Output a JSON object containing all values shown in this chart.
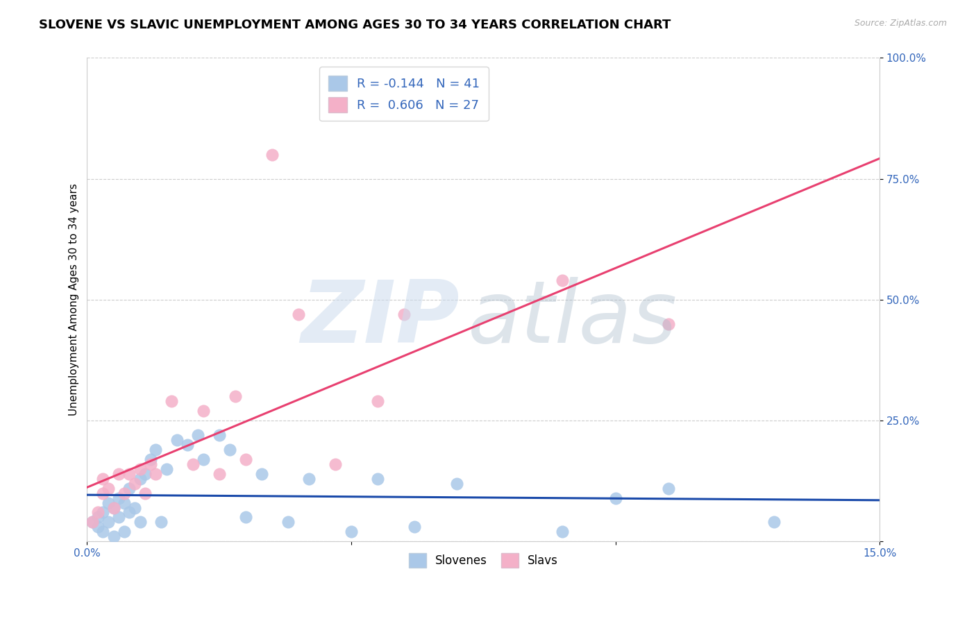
{
  "title": "SLOVENE VS SLAVIC UNEMPLOYMENT AMONG AGES 30 TO 34 YEARS CORRELATION CHART",
  "source": "Source: ZipAtlas.com",
  "ylabel": "Unemployment Among Ages 30 to 34 years",
  "xlim": [
    0.0,
    0.15
  ],
  "ylim": [
    0.0,
    1.0
  ],
  "legend1_label": "R = -0.144   N = 41",
  "legend2_label": "R =  0.606   N = 27",
  "slovene_color": "#aac8e8",
  "slav_color": "#f4b0c8",
  "slovene_line_color": "#1a4aaa",
  "slav_line_color": "#e84070",
  "grid_color": "#cccccc",
  "background_color": "#ffffff",
  "title_fontsize": 13,
  "axis_label_fontsize": 11,
  "tick_fontsize": 11,
  "legend_fontsize": 13,
  "slovene_x": [
    0.001,
    0.002,
    0.002,
    0.003,
    0.003,
    0.004,
    0.004,
    0.005,
    0.005,
    0.006,
    0.006,
    0.007,
    0.007,
    0.008,
    0.008,
    0.009,
    0.01,
    0.01,
    0.011,
    0.012,
    0.013,
    0.014,
    0.015,
    0.017,
    0.019,
    0.021,
    0.022,
    0.025,
    0.027,
    0.03,
    0.033,
    0.038,
    0.042,
    0.05,
    0.055,
    0.062,
    0.07,
    0.09,
    0.1,
    0.11,
    0.13
  ],
  "slovene_y": [
    0.04,
    0.05,
    0.03,
    0.06,
    0.02,
    0.08,
    0.04,
    0.07,
    0.01,
    0.09,
    0.05,
    0.08,
    0.02,
    0.11,
    0.06,
    0.07,
    0.13,
    0.04,
    0.14,
    0.17,
    0.19,
    0.04,
    0.15,
    0.21,
    0.2,
    0.22,
    0.17,
    0.22,
    0.19,
    0.05,
    0.14,
    0.04,
    0.13,
    0.02,
    0.13,
    0.03,
    0.12,
    0.02,
    0.09,
    0.11,
    0.04
  ],
  "slav_x": [
    0.001,
    0.002,
    0.003,
    0.003,
    0.004,
    0.005,
    0.006,
    0.007,
    0.008,
    0.009,
    0.01,
    0.011,
    0.012,
    0.013,
    0.016,
    0.02,
    0.022,
    0.025,
    0.028,
    0.03,
    0.035,
    0.04,
    0.047,
    0.055,
    0.06,
    0.09,
    0.11
  ],
  "slav_y": [
    0.04,
    0.06,
    0.1,
    0.13,
    0.11,
    0.07,
    0.14,
    0.1,
    0.14,
    0.12,
    0.15,
    0.1,
    0.16,
    0.14,
    0.29,
    0.16,
    0.27,
    0.14,
    0.3,
    0.17,
    0.8,
    0.47,
    0.16,
    0.29,
    0.47,
    0.54,
    0.45
  ]
}
